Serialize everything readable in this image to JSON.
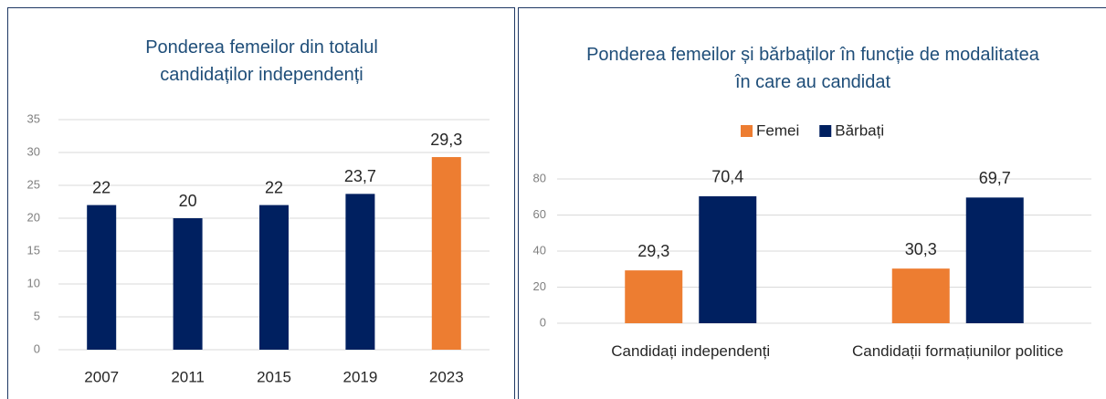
{
  "chart_data": [
    {
      "type": "bar",
      "title": "Ponderea femeilor din totalul candidaților independenți",
      "categories": [
        "2007",
        "2011",
        "2015",
        "2019",
        "2023"
      ],
      "values": [
        22,
        20,
        22,
        23.7,
        29.3
      ],
      "value_labels": [
        "22",
        "20",
        "22",
        "23,7",
        "29,3"
      ],
      "colors": [
        "#002060",
        "#002060",
        "#002060",
        "#002060",
        "#ED7D31"
      ],
      "ylim": [
        0,
        35
      ],
      "yticks": [
        0,
        5,
        10,
        15,
        20,
        25,
        30,
        35
      ],
      "grid": true
    },
    {
      "type": "grouped_bar",
      "title": "Ponderea femeilor și bărbaților în funcție de modalitatea în care au candidat",
      "categories": [
        "Candidați independenți",
        "Candidații formațiunilor politice"
      ],
      "series": [
        {
          "name": "Femei",
          "color": "#ED7D31",
          "values": [
            29.3,
            30.3
          ],
          "value_labels": [
            "29,3",
            "30,3"
          ]
        },
        {
          "name": "Bărbați",
          "color": "#002060",
          "values": [
            70.4,
            69.7
          ],
          "value_labels": [
            "70,4",
            "69,7"
          ]
        }
      ],
      "ylim": [
        0,
        80
      ],
      "yticks": [
        0,
        20,
        40,
        60,
        80
      ],
      "grid": true,
      "legend": "top"
    }
  ]
}
